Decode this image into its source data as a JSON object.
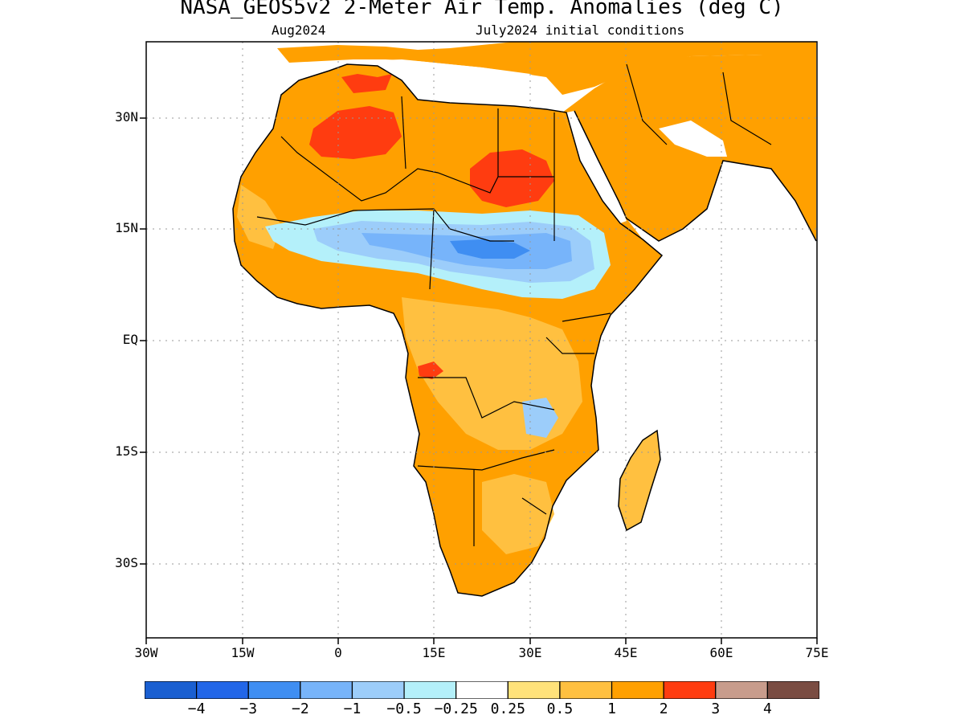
{
  "title": "NASA_GEOS5v2 2-Meter Air Temp. Anomalies (deg C)",
  "subtitle_left": "Aug2024",
  "subtitle_right": "July2024 initial conditions",
  "lat_labels": [
    "30N",
    "15N",
    "EQ",
    "15S",
    "30S"
  ],
  "lon_labels": [
    "30W",
    "15W",
    "0",
    "15E",
    "30E",
    "45E",
    "60E",
    "75E"
  ],
  "colorbar": {
    "colors": [
      "#1a5fd1",
      "#2266e8",
      "#3f8ef2",
      "#77b4fa",
      "#9ccdfa",
      "#b4f0fa",
      "#ffffff",
      "#ffe27a",
      "#ffc040",
      "#ffa000",
      "#ff3c10",
      "#c89c8c",
      "#7a4c42"
    ],
    "labels": [
      "−4",
      "−3",
      "−2",
      "−1",
      "−0.5",
      "−0.25",
      "0.25",
      "0.5",
      "1",
      "2",
      "3",
      "4"
    ]
  }
}
